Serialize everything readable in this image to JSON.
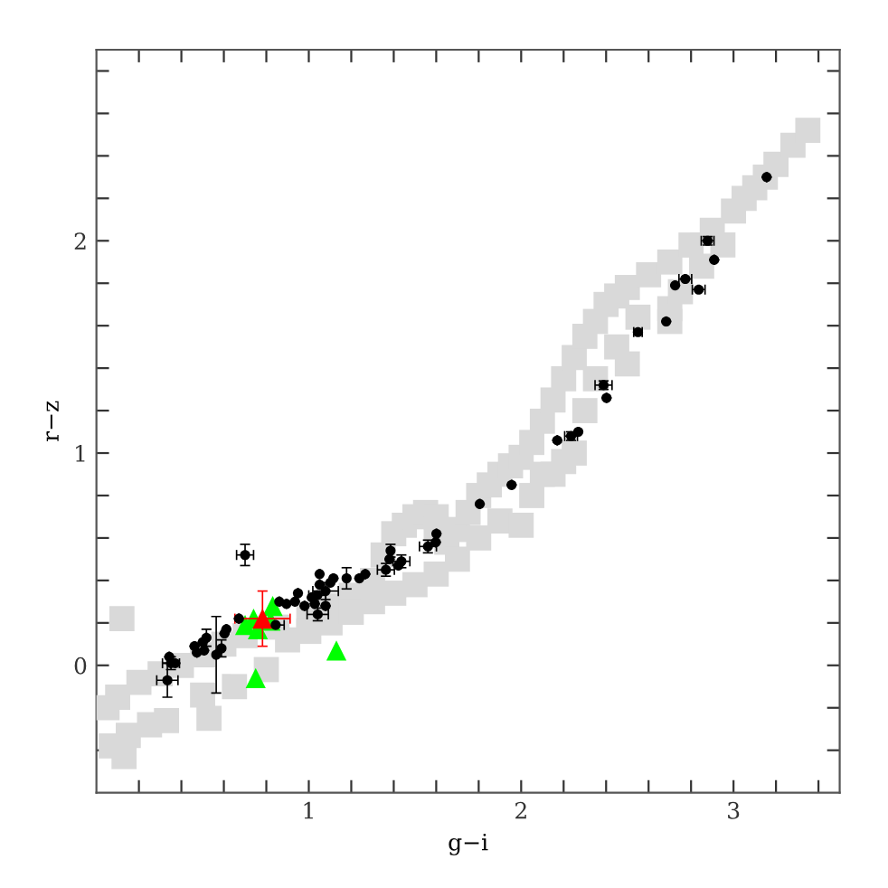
{
  "chart_data": {
    "type": "scatter",
    "xlabel": "g−i",
    "ylabel": "r−z",
    "xlim": [
      0,
      3.5
    ],
    "ylim": [
      -0.6,
      2.9
    ],
    "xticks": [
      {
        "value": 0.2,
        "label": null
      },
      {
        "value": 0.4,
        "label": null
      },
      {
        "value": 0.6,
        "label": null
      },
      {
        "value": 0.8,
        "label": null
      },
      1,
      {
        "value": 1.2,
        "label": null
      },
      {
        "value": 1.4,
        "label": null
      },
      {
        "value": 1.6,
        "label": null
      },
      {
        "value": 1.8,
        "label": null
      },
      2,
      {
        "value": 2.2,
        "label": null
      },
      {
        "value": 2.4,
        "label": null
      },
      {
        "value": 2.6,
        "label": null
      },
      {
        "value": 2.8,
        "label": null
      },
      3,
      {
        "value": 3.2,
        "label": null
      },
      {
        "value": 3.4,
        "label": null
      }
    ],
    "yticks": [
      {
        "value": -0.4,
        "label": null
      },
      {
        "value": -0.2,
        "label": null
      },
      0,
      {
        "value": 0.2,
        "label": null
      },
      {
        "value": 0.4,
        "label": null
      },
      {
        "value": 0.6,
        "label": null
      },
      {
        "value": 0.8,
        "label": null
      },
      1,
      {
        "value": 1.2,
        "label": null
      },
      {
        "value": 1.4,
        "label": null
      },
      {
        "value": 1.6,
        "label": null
      },
      {
        "value": 1.8,
        "label": null
      },
      2,
      {
        "value": 2.2,
        "label": null
      },
      {
        "value": 2.4,
        "label": null
      },
      {
        "value": 2.6,
        "label": null
      },
      {
        "value": 2.8,
        "label": null
      }
    ],
    "grid": false,
    "legend": false,
    "series": [
      {
        "color": "#d9d9d9",
        "marker": "square",
        "x": [
          0.12,
          0.07,
          0.13,
          0.15,
          0.25,
          0.33,
          0.53,
          0.5,
          0.65,
          0.8,
          0.05,
          0.1,
          0.2,
          0.3,
          0.4,
          0.5,
          0.6,
          0.7,
          0.85,
          1.0,
          1.1,
          1.2,
          1.3,
          1.35,
          1.4,
          1.45,
          1.5,
          1.55,
          1.6,
          1.6,
          1.65,
          1.7,
          1.75,
          1.8,
          1.85,
          1.9,
          1.95,
          2.0,
          2.05,
          2.1,
          2.15,
          2.2,
          2.25,
          2.3,
          2.35,
          2.4,
          2.45,
          2.5,
          2.6,
          2.7,
          2.8,
          2.9,
          3.0,
          3.05,
          3.1,
          3.15,
          3.2,
          3.28,
          3.35,
          0.9,
          1.0,
          1.1,
          1.2,
          1.3,
          1.4,
          1.5,
          1.6,
          1.7,
          1.8,
          1.9,
          2.0,
          2.05,
          2.1,
          2.15,
          2.2,
          2.25,
          2.3,
          2.35,
          2.45,
          2.55,
          2.7,
          2.75,
          2.85,
          2.95,
          2.5,
          2.7
        ],
        "values": [
          0.22,
          -0.38,
          -0.43,
          -0.33,
          -0.28,
          -0.26,
          -0.25,
          -0.14,
          -0.1,
          -0.02,
          -0.2,
          -0.15,
          -0.08,
          -0.04,
          0.0,
          0.05,
          0.1,
          0.14,
          0.18,
          0.22,
          0.28,
          0.33,
          0.4,
          0.52,
          0.62,
          0.66,
          0.7,
          0.72,
          0.7,
          0.64,
          0.58,
          0.64,
          0.72,
          0.8,
          0.85,
          0.9,
          0.94,
          0.98,
          1.05,
          1.15,
          1.25,
          1.35,
          1.45,
          1.55,
          1.62,
          1.7,
          1.74,
          1.78,
          1.84,
          1.9,
          1.98,
          2.05,
          2.14,
          2.2,
          2.25,
          2.3,
          2.36,
          2.45,
          2.52,
          0.12,
          0.16,
          0.2,
          0.25,
          0.3,
          0.34,
          0.38,
          0.43,
          0.5,
          0.6,
          0.68,
          0.66,
          0.8,
          0.9,
          0.9,
          0.96,
          1.0,
          1.2,
          1.35,
          1.5,
          1.64,
          1.68,
          1.76,
          1.88,
          1.98,
          1.42,
          1.62
        ]
      },
      {
        "color": "#000000",
        "marker": "circle",
        "x": [
          3.156,
          2.878,
          2.909,
          2.725,
          2.773,
          2.836,
          2.683,
          2.55,
          2.388,
          2.402,
          2.17,
          2.235,
          2.269,
          1.955,
          1.805,
          1.601,
          1.598,
          1.561,
          1.436,
          1.422,
          1.385,
          1.38,
          1.363,
          1.266,
          1.238,
          1.178,
          1.116,
          1.102,
          1.051,
          1.051,
          1.079,
          1.04,
          1.014,
          1.028,
          1.042,
          1.079,
          0.98,
          0.949,
          0.935,
          0.895,
          0.861,
          0.844,
          0.671,
          0.7,
          0.612,
          0.603,
          0.589,
          0.564,
          0.533,
          0.518,
          0.501,
          0.507,
          0.462,
          0.473,
          0.343,
          0.351,
          0.371,
          0.334
        ],
        "values": [
          2.3,
          2.0,
          1.91,
          1.79,
          1.82,
          1.77,
          1.62,
          1.57,
          1.32,
          1.26,
          1.06,
          1.08,
          1.1,
          0.85,
          0.76,
          0.62,
          0.58,
          0.56,
          0.49,
          0.47,
          0.54,
          0.5,
          0.45,
          0.43,
          0.41,
          0.41,
          0.41,
          0.39,
          0.43,
          0.38,
          0.35,
          0.33,
          0.32,
          0.29,
          0.24,
          0.28,
          0.28,
          0.34,
          0.3,
          0.29,
          0.3,
          0.19,
          0.22,
          0.52,
          0.17,
          0.15,
          0.08,
          0.05,
          null,
          0.13,
          0.11,
          0.07,
          0.09,
          0.06,
          0.04,
          0.01,
          0.01,
          -0.07
        ],
        "errors": [
          null,
          0.02,
          null,
          null,
          null,
          null,
          null,
          null,
          0.02,
          null,
          null,
          0.02,
          null,
          null,
          null,
          null,
          null,
          0.03,
          0.03,
          null,
          0.03,
          null,
          0.03,
          null,
          null,
          0.05,
          null,
          null,
          null,
          null,
          0.04,
          null,
          null,
          null,
          0.03,
          null,
          null,
          null,
          null,
          null,
          null,
          null,
          null,
          0.05,
          null,
          null,
          0.04,
          0.18,
          null,
          0.04,
          null,
          null,
          null,
          null,
          null,
          0.03,
          null,
          0.08
        ],
        "xerrors": [
          null,
          0.03,
          null,
          null,
          0.03,
          0.03,
          null,
          0.02,
          0.04,
          null,
          null,
          0.03,
          null,
          null,
          null,
          null,
          null,
          0.04,
          0.04,
          null,
          null,
          null,
          0.04,
          null,
          null,
          null,
          null,
          null,
          null,
          null,
          0.06,
          0.04,
          null,
          null,
          0.05,
          null,
          null,
          null,
          null,
          null,
          null,
          0.04,
          null,
          0.04,
          null,
          null,
          null,
          null,
          null,
          null,
          null,
          null,
          null,
          null,
          null,
          0.04,
          null,
          0.05
        ]
      },
      {
        "color": "#00ff00",
        "marker": "triangle",
        "x": [
          0.7,
          0.74,
          0.77,
          0.8,
          0.83,
          0.76,
          0.82,
          0.75,
          1.13
        ],
        "values": [
          0.19,
          0.22,
          null,
          null,
          0.28,
          0.17,
          0.21,
          -0.06,
          0.07
        ]
      },
      {
        "color": "#ff0000",
        "marker": "triangle",
        "x": [
          0.782
        ],
        "values": [
          0.22
        ],
        "errors": [
          0.13
        ],
        "xerrors": [
          0.13
        ]
      }
    ]
  }
}
